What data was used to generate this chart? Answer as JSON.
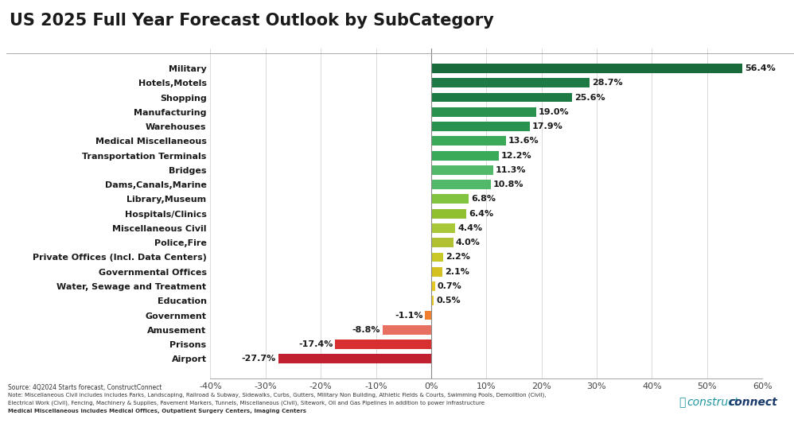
{
  "title": "US 2025 Full Year Forecast Outlook by SubCategory",
  "categories": [
    "Military",
    "Hotels,Motels",
    "Shopping",
    "Manufacturing",
    "Warehouses",
    "Medical Miscellaneous",
    "Transportation Terminals",
    "Bridges",
    "Dams,Canals,Marine",
    "Library,Museum",
    "Hospitals/Clinics",
    "Miscellaneous Civil",
    "Police,Fire",
    "Private Offices (Incl. Data Centers)",
    "Governmental Offices",
    "Water, Sewage and Treatment",
    "Education",
    "Government",
    "Amusement",
    "Prisons",
    "Airport"
  ],
  "values": [
    56.4,
    28.7,
    25.6,
    19.0,
    17.9,
    13.6,
    12.2,
    11.3,
    10.8,
    6.8,
    6.4,
    4.4,
    4.0,
    2.2,
    2.1,
    0.7,
    0.5,
    -1.1,
    -8.8,
    -17.4,
    -27.7
  ],
  "bar_colors": [
    "#1a6b3c",
    "#1d7a44",
    "#1d7a44",
    "#28924e",
    "#28924e",
    "#3aaa58",
    "#3aaa58",
    "#52b86a",
    "#52b86a",
    "#80c440",
    "#90c030",
    "#a8c838",
    "#b0c030",
    "#c8c828",
    "#d4c020",
    "#e8c820",
    "#e8c820",
    "#f08030",
    "#e87060",
    "#d83030",
    "#c02030"
  ],
  "xlim": [
    -40,
    60
  ],
  "xticks": [
    -40,
    -30,
    -20,
    -10,
    0,
    10,
    20,
    30,
    40,
    50,
    60
  ],
  "xtick_labels": [
    "-40%",
    "-30%",
    "-20%",
    "-10%",
    "0%",
    "10%",
    "20%",
    "30%",
    "40%",
    "50%",
    "60%"
  ],
  "background_color": "#ffffff",
  "plot_bg_color": "#ffffff",
  "title_color": "#1a1a1a",
  "title_fontsize": 15,
  "bar_height": 0.65,
  "source_text": "Source: 4Q2024 Starts forecast, ConstructConnect",
  "note_text1": "Note: Miscellaneous Civil includes includes Parks, Landscaping, Railroad & Subway, Sidewalks, Curbs, Gutters, Military Non Building, Athletic Fields & Courts, Swimming Pools, Demolition (Civil),",
  "note_text2": "Electrical Work (Civil), Fencing, Machinery & Supplies, Pavement Markers, Tunnels, Miscellaneous (Civil), Sitework, Oil and Gas Pipelines in addition to power infrastructure",
  "note_text3": "Medical Miscellaneous includes Medical Offices, Outpatient Surgery Centers, Imaging Centers",
  "left_border_color": "#2196a0",
  "label_fontsize": 8.0,
  "ytick_fontsize": 8.0,
  "xtick_fontsize": 8.0
}
